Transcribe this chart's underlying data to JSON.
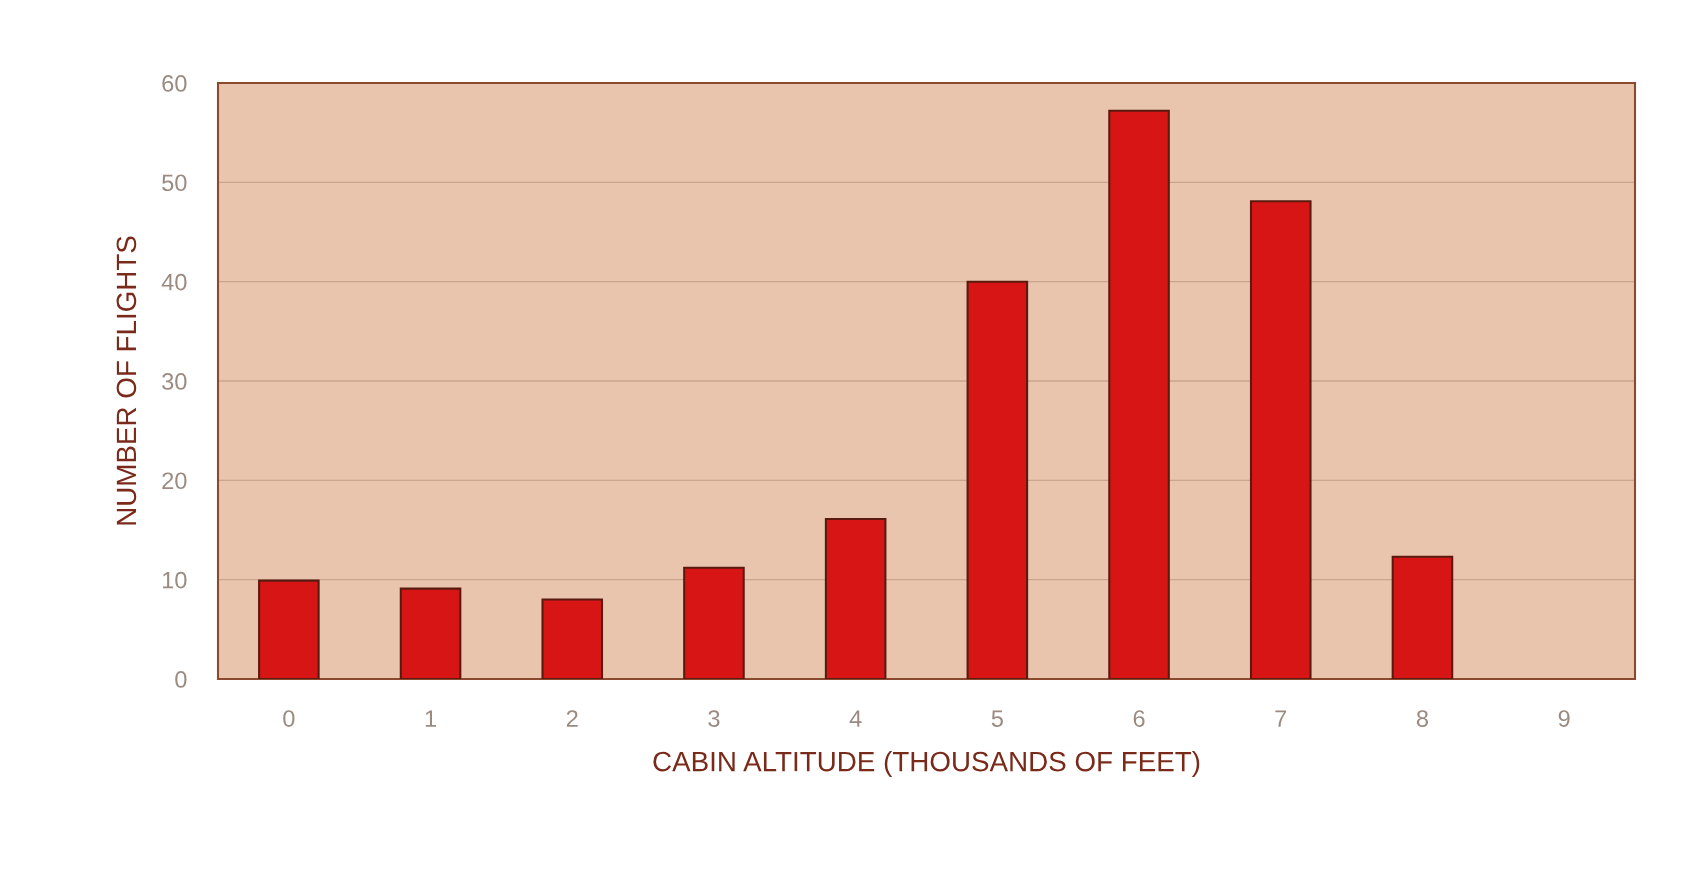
{
  "chart_data": {
    "type": "bar",
    "xlabel": "CABIN ALTITUDE (THOUSANDS OF FEET)",
    "ylabel": "NUMBER OF FLIGHTS",
    "categories": [
      "0",
      "1",
      "2",
      "3",
      "4",
      "5",
      "6",
      "7",
      "8",
      "9"
    ],
    "values": [
      9.9,
      9.1,
      8.0,
      11.2,
      16.1,
      40,
      57.2,
      48.1,
      12.3,
      null
    ],
    "color": "#d81515",
    "ylim": [
      0,
      60
    ],
    "yticks": [
      0,
      10,
      20,
      30,
      40,
      50,
      60
    ],
    "grid": "y",
    "legend": false
  }
}
